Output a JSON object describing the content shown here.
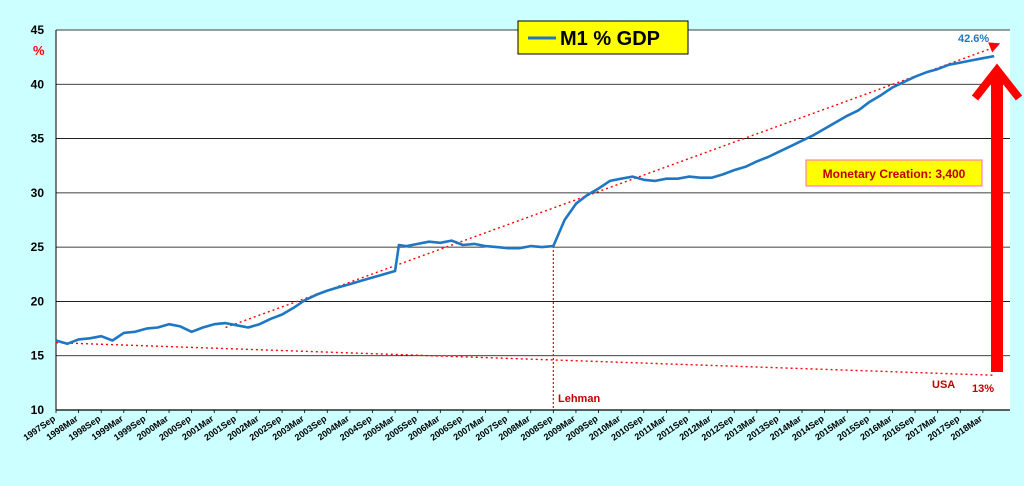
{
  "chart_data": {
    "type": "line",
    "title": "M1 % GDP",
    "ylabel": "%",
    "ylim": [
      10,
      45
    ],
    "yticks": [
      10,
      15,
      20,
      25,
      30,
      35,
      40,
      45
    ],
    "grid": true,
    "legend": "top-center",
    "xticks": [
      "1997Sep",
      "1998Mar",
      "1998Sep",
      "1999Mar",
      "1999Sep",
      "2000Mar",
      "2000Sep",
      "2001Mar",
      "2001Sep",
      "2002Mar",
      "2002Sep",
      "2003Mar",
      "2003Sep",
      "2004Mar",
      "2004Sep",
      "2005Mar",
      "2005Sep",
      "2006Mar",
      "2006Sep",
      "2007Mar",
      "2007Sep",
      "2008Mar",
      "2008Sep",
      "2009Mar",
      "2009Sep",
      "2010Mar",
      "2010Sep",
      "2011Mar",
      "2011Sep",
      "2012Mar",
      "2012Sep",
      "2013Mar",
      "2013Sep",
      "2014Mar",
      "2014Sep",
      "2015Mar",
      "2015Sep",
      "2016Mar",
      "2016Sep",
      "2017Mar",
      "2017Sep",
      "2018Mar"
    ],
    "series": [
      {
        "name": "M1 % GDP",
        "color": "#1f77c4",
        "x": [
          "1997Sep",
          "1997Dec",
          "1998Mar",
          "1998Jun",
          "1998Sep",
          "1998Dec",
          "1999Mar",
          "1999Jun",
          "1999Sep",
          "1999Dec",
          "2000Mar",
          "2000Jun",
          "2000Sep",
          "2000Dec",
          "2001Mar",
          "2001Jun",
          "2001Sep",
          "2001Dec",
          "2002Mar",
          "2002Jun",
          "2002Sep",
          "2002Dec",
          "2003Mar",
          "2003Jun",
          "2003Sep",
          "2003Dec",
          "2004Mar",
          "2004Jun",
          "2004Sep",
          "2004Dec",
          "2005Mar",
          "2005Apr",
          "2005Jun",
          "2005Sep",
          "2005Dec",
          "2006Mar",
          "2006Jun",
          "2006Sep",
          "2006Dec",
          "2007Mar",
          "2007Jun",
          "2007Sep",
          "2007Dec",
          "2008Mar",
          "2008Jun",
          "2008Sep",
          "2008Dec",
          "2009Mar",
          "2009Jun",
          "2009Sep",
          "2009Dec",
          "2010Mar",
          "2010Jun",
          "2010Sep",
          "2010Dec",
          "2011Mar",
          "2011Jun",
          "2011Sep",
          "2011Dec",
          "2012Mar",
          "2012Jun",
          "2012Sep",
          "2012Dec",
          "2013Mar",
          "2013Jun",
          "2013Sep",
          "2013Dec",
          "2014Mar",
          "2014Jun",
          "2014Sep",
          "2014Dec",
          "2015Mar",
          "2015Jun",
          "2015Sep",
          "2015Dec",
          "2016Mar",
          "2016Jun",
          "2016Sep",
          "2016Dec",
          "2017Mar",
          "2017Jun",
          "2017Sep",
          "2017Dec",
          "2018Mar",
          "2018Jun"
        ],
        "values": [
          16.4,
          16.1,
          16.5,
          16.6,
          16.8,
          16.4,
          17.1,
          17.2,
          17.5,
          17.6,
          17.9,
          17.7,
          17.2,
          17.6,
          17.9,
          18.0,
          17.8,
          17.6,
          17.9,
          18.4,
          18.8,
          19.4,
          20.1,
          20.6,
          21.0,
          21.3,
          21.6,
          21.9,
          22.2,
          22.5,
          22.8,
          25.2,
          25.1,
          25.3,
          25.5,
          25.4,
          25.6,
          25.2,
          25.3,
          25.1,
          25.0,
          24.9,
          24.9,
          25.1,
          25.0,
          25.1,
          27.5,
          29.0,
          29.8,
          30.4,
          31.1,
          31.3,
          31.5,
          31.2,
          31.1,
          31.3,
          31.3,
          31.5,
          31.4,
          31.4,
          31.7,
          32.1,
          32.4,
          32.9,
          33.3,
          33.8,
          34.3,
          34.8,
          35.3,
          35.9,
          36.5,
          37.1,
          37.6,
          38.4,
          39.0,
          39.7,
          40.2,
          40.7,
          41.1,
          41.4,
          41.8,
          42.0,
          42.2,
          42.4,
          42.6
        ]
      }
    ],
    "annotations": {
      "end_label": "42.6%",
      "lehman_label": "Lehman",
      "lehman_x": "2008Sep",
      "monetary_label": "Monetary Creation: 3,400",
      "usa_label": "USA",
      "usa_pct": "13%",
      "upper_trend": [
        {
          "x": "2001Jun",
          "y": 17.6
        },
        {
          "x": "2018Jun",
          "y": 43.4
        }
      ],
      "lower_trend": [
        {
          "x": "1997Sep",
          "y": 16.2
        },
        {
          "x": "2018Jun",
          "y": 13.2
        }
      ],
      "arrow_range": [
        13.5,
        41.5
      ]
    },
    "colors": {
      "background": "#ccffff",
      "plot_bg": "#ffffff",
      "line": "#1f77c4",
      "trend": "#ff0000",
      "arrow": "#ff0000",
      "title_box": "#ffff00",
      "annotation_text": "#c00000"
    }
  }
}
